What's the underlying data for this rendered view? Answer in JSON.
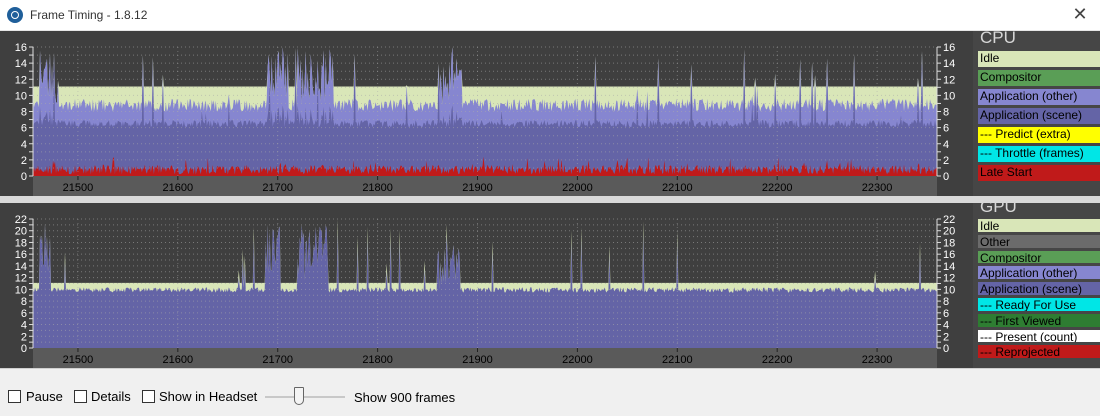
{
  "window": {
    "title": "Frame Timing - 1.8.12",
    "close_glyph": "✕"
  },
  "cpu": {
    "heading": "CPU",
    "legend": [
      {
        "label": "Idle",
        "bg": "#d9e6b8",
        "fg": "#000000"
      },
      {
        "label": "Compositor",
        "bg": "#5a9e56",
        "fg": "#000000"
      },
      {
        "label": "Application (other)",
        "bg": "#8686d0",
        "fg": "#000000"
      },
      {
        "label": "Application (scene)",
        "bg": "#6464a6",
        "fg": "#000000"
      },
      {
        "label": "--- Predict (extra)",
        "bg": "#ffff00",
        "fg": "#000000"
      },
      {
        "label": "--- Throttle (frames)",
        "bg": "#00e6e6",
        "fg": "#000000"
      },
      {
        "label": "Late Start",
        "bg": "#c01a1a",
        "fg": "#000000"
      }
    ]
  },
  "gpu": {
    "heading": "GPU",
    "legend": [
      {
        "label": "Idle",
        "bg": "#d9e6b8",
        "fg": "#000000"
      },
      {
        "label": "Other",
        "bg": "#6b6b6b",
        "fg": "#000000"
      },
      {
        "label": "Compositor",
        "bg": "#5a9e56",
        "fg": "#000000"
      },
      {
        "label": "Application (other)",
        "bg": "#8686d0",
        "fg": "#000000"
      },
      {
        "label": "Application (scene)",
        "bg": "#6464a6",
        "fg": "#000000"
      },
      {
        "label": "--- Ready For Use",
        "bg": "#00e6e6",
        "fg": "#000000"
      },
      {
        "label": "--- First Viewed",
        "bg": "#2e7d32",
        "fg": "#000000"
      },
      {
        "label": "--- Present (count)",
        "bg": "#ffffff",
        "fg": "#000000"
      },
      {
        "label": "--- Reprojected",
        "bg": "#c01a1a",
        "fg": "#000000"
      }
    ]
  },
  "colors": {
    "panel_bg": "#3f3f3f",
    "idle": "#d9e6b8",
    "app_other": "#8686d0",
    "app_scene": "#6464a6",
    "late_start": "#c01a1a"
  },
  "footer": {
    "pause_label": "Pause",
    "details_label": "Details",
    "show_in_headset_label": "Show in Headset",
    "frames_label": "Show 900 frames"
  },
  "chart_data": [
    {
      "type": "area",
      "title": "CPU",
      "xticks": [
        21500,
        21600,
        21700,
        21800,
        21900,
        22000,
        22100,
        22200,
        22300
      ],
      "xlim": [
        21455,
        22360
      ],
      "yticks": [
        0,
        1,
        2,
        3,
        4,
        5,
        6,
        7,
        8,
        9,
        10,
        11,
        12,
        13,
        14,
        15,
        16
      ],
      "ytick_labels": [
        "0",
        "",
        "2",
        "",
        "4",
        "",
        "6",
        "",
        "8",
        "",
        "10",
        "",
        "12",
        "",
        "14",
        "",
        "16"
      ],
      "ylim": [
        0,
        16
      ],
      "idle_level": 11.1,
      "grid": true,
      "legend_position": "right",
      "series": [
        {
          "name": "Application (scene)",
          "color": "#6464a6",
          "typical_level": 6.5
        },
        {
          "name": "Application (other)",
          "color": "#8686d0",
          "typical_level": 8.8
        },
        {
          "name": "Idle",
          "color": "#d9e6b8",
          "typical_level": 11.1
        },
        {
          "name": "Late Start",
          "color": "#c01a1a",
          "typical_level": 1.0
        }
      ],
      "spikes": [
        {
          "x_start": 21462,
          "x_end": 21480,
          "peak": 16
        },
        {
          "x_start": 21690,
          "x_end": 21710,
          "peak": 16
        },
        {
          "x_start": 21720,
          "x_end": 21755,
          "peak": 16
        },
        {
          "x_start": 21862,
          "x_end": 21884,
          "peak": 16
        }
      ]
    },
    {
      "type": "area",
      "title": "GPU",
      "xticks": [
        21500,
        21600,
        21700,
        21800,
        21900,
        22000,
        22100,
        22200,
        22300
      ],
      "xlim": [
        21455,
        22360
      ],
      "yticks": [
        0,
        1,
        2,
        3,
        4,
        5,
        6,
        7,
        8,
        9,
        10,
        11,
        12,
        13,
        14,
        15,
        16,
        17,
        18,
        19,
        20,
        21,
        22
      ],
      "ytick_labels": [
        "0",
        "",
        "2",
        "",
        "4",
        "",
        "6",
        "",
        "8",
        "",
        "10",
        "",
        "12",
        "",
        "14",
        "",
        "16",
        "",
        "18",
        "",
        "20",
        "",
        "22"
      ],
      "ylim": [
        0,
        22
      ],
      "idle_level": 11.1,
      "grid": true,
      "legend_position": "right",
      "series": [
        {
          "name": "Application (scene)",
          "color": "#6464a6",
          "typical_level": 9.9
        },
        {
          "name": "Idle",
          "color": "#d9e6b8",
          "typical_level": 11.1
        }
      ],
      "spikes": [
        {
          "x_start": 21462,
          "x_end": 21472,
          "peak": 22
        },
        {
          "x_start": 21688,
          "x_end": 21702,
          "peak": 22
        },
        {
          "x_start": 21720,
          "x_end": 21750,
          "peak": 21
        },
        {
          "x_start": 21860,
          "x_end": 21882,
          "peak": 18
        }
      ]
    }
  ]
}
